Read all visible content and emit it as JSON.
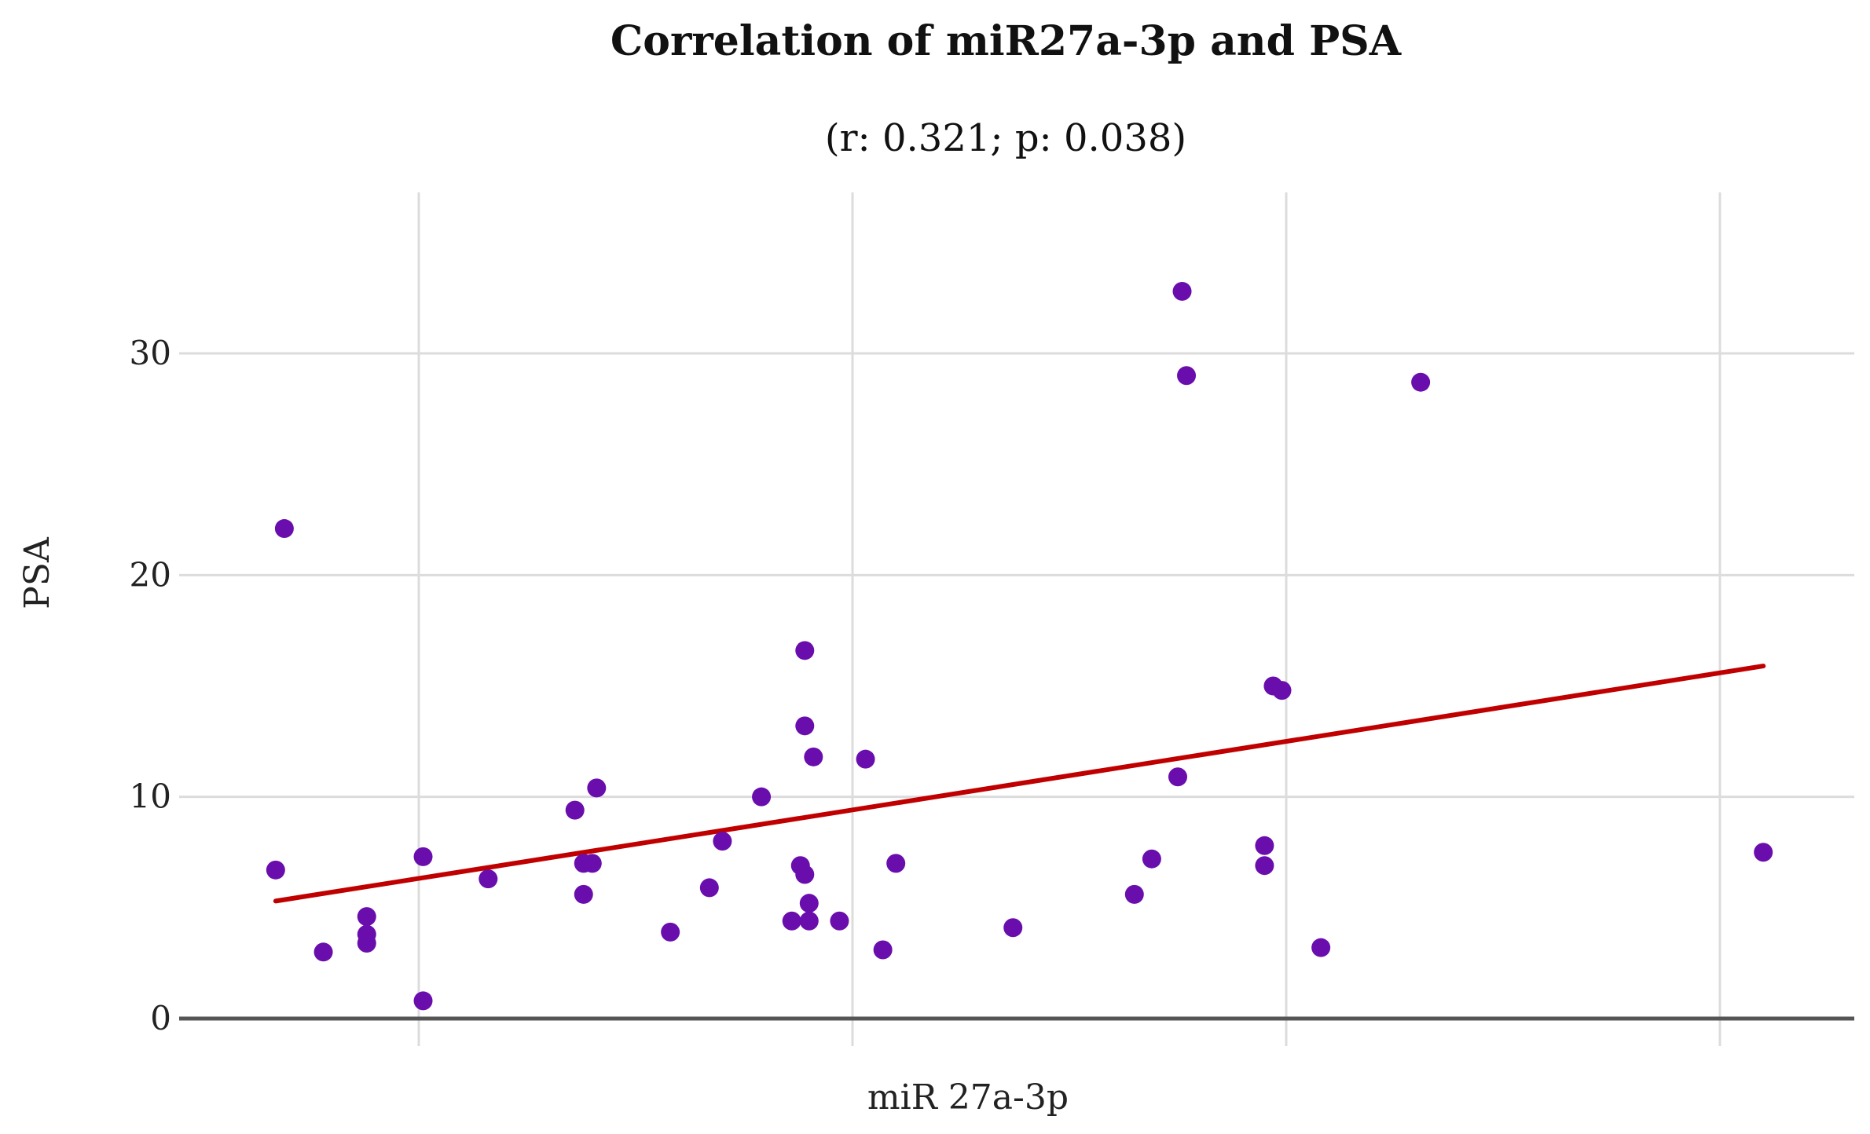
{
  "chart_data": {
    "type": "scatter",
    "title": "Correlation of miR27a-3p and PSA",
    "subtitle": "(r: 0.321; p: 0.038)",
    "xlabel": "miR 27a-3p",
    "ylabel": "PSA",
    "xlim": [
      -0.33,
      3.25
    ],
    "ylim": [
      -0.5,
      37
    ],
    "y_ticks": [
      0,
      10,
      20,
      30
    ],
    "x_gridlines": [
      0,
      1,
      2,
      3
    ],
    "grid": true,
    "point_color": "#6a0dad",
    "line_color": "#c00000",
    "trendline": {
      "x": [
        -0.33,
        3.1
      ],
      "y": [
        5.3,
        15.9
      ]
    },
    "points": [
      {
        "x": -0.33,
        "y": 6.7
      },
      {
        "x": -0.31,
        "y": 22.1
      },
      {
        "x": -0.22,
        "y": 3.0
      },
      {
        "x": -0.12,
        "y": 4.6
      },
      {
        "x": -0.12,
        "y": 3.8
      },
      {
        "x": -0.12,
        "y": 3.4
      },
      {
        "x": 0.01,
        "y": 7.3
      },
      {
        "x": 0.01,
        "y": 0.8
      },
      {
        "x": 0.16,
        "y": 6.3
      },
      {
        "x": 0.36,
        "y": 9.4
      },
      {
        "x": 0.38,
        "y": 7.0
      },
      {
        "x": 0.38,
        "y": 5.6
      },
      {
        "x": 0.4,
        "y": 7.0
      },
      {
        "x": 0.41,
        "y": 10.4
      },
      {
        "x": 0.58,
        "y": 3.9
      },
      {
        "x": 0.67,
        "y": 5.9
      },
      {
        "x": 0.7,
        "y": 8.0
      },
      {
        "x": 0.79,
        "y": 10.0
      },
      {
        "x": 0.86,
        "y": 4.4
      },
      {
        "x": 0.88,
        "y": 6.9
      },
      {
        "x": 0.89,
        "y": 16.6
      },
      {
        "x": 0.89,
        "y": 13.2
      },
      {
        "x": 0.89,
        "y": 6.5
      },
      {
        "x": 0.9,
        "y": 5.2
      },
      {
        "x": 0.9,
        "y": 4.4
      },
      {
        "x": 0.91,
        "y": 11.8
      },
      {
        "x": 0.97,
        "y": 4.4
      },
      {
        "x": 1.03,
        "y": 11.7
      },
      {
        "x": 1.07,
        "y": 3.1
      },
      {
        "x": 1.1,
        "y": 7.0
      },
      {
        "x": 1.37,
        "y": 4.1
      },
      {
        "x": 1.65,
        "y": 5.6
      },
      {
        "x": 1.69,
        "y": 7.2
      },
      {
        "x": 1.75,
        "y": 10.9
      },
      {
        "x": 1.76,
        "y": 32.8
      },
      {
        "x": 1.77,
        "y": 29.0
      },
      {
        "x": 1.95,
        "y": 7.8
      },
      {
        "x": 1.95,
        "y": 6.9
      },
      {
        "x": 1.97,
        "y": 15.0
      },
      {
        "x": 1.99,
        "y": 14.8
      },
      {
        "x": 2.08,
        "y": 3.2
      },
      {
        "x": 2.31,
        "y": 28.7
      },
      {
        "x": 3.1,
        "y": 7.5
      }
    ]
  }
}
